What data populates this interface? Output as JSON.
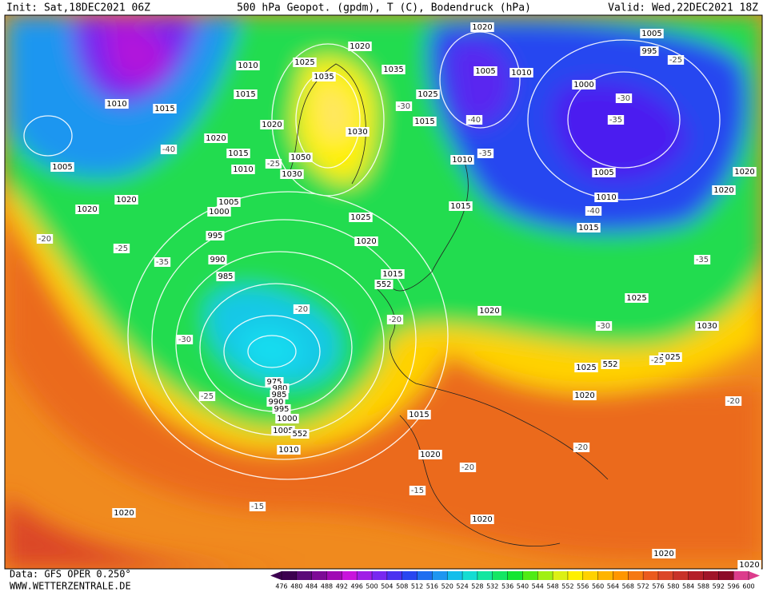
{
  "header": {
    "init": "Init: Sat,18DEC2021 06Z",
    "title": "500 hPa Geopot. (gpdm), T (C), Bodendruck (hPa)",
    "valid": "Valid: Wed,22DEC2021 18Z"
  },
  "footer": {
    "data": "Data: GFS OPER 0.250°",
    "site": "WWW.WETTERZENTRALE.DE"
  },
  "map": {
    "pressure_labels": [
      "1020",
      "1005",
      "995",
      "1020",
      "1010",
      "1025",
      "1035",
      "1035",
      "1005",
      "1010",
      "1000",
      "1010",
      "1015",
      "1015",
      "1025",
      "1020",
      "1015",
      "1030",
      "1020",
      "1015",
      "1050",
      "1010",
      "1010",
      "1030",
      "1005",
      "1005",
      "1020",
      "1020",
      "1020",
      "1010",
      "1005",
      "1000",
      "1020",
      "1015",
      "1025",
      "1015",
      "995",
      "1020",
      "990",
      "985",
      "1015",
      "552",
      "1025",
      "1020",
      "1030",
      "1025",
      "1025",
      "552",
      "975",
      "980",
      "985",
      "990",
      "995",
      "1000",
      "1005",
      "552",
      "1010",
      "1020",
      "1015",
      "1020",
      "1020",
      "1020",
      "1020",
      "1020"
    ],
    "temperature_labels": [
      "-25",
      "-30",
      "-30",
      "-35",
      "-40",
      "-40",
      "-35",
      "-25",
      "-20",
      "-40",
      "-35",
      "-25",
      "-20",
      "-35",
      "-20",
      "-20",
      "-30",
      "-30",
      "-25",
      "-25",
      "-20",
      "-20",
      "-15",
      "-15"
    ]
  },
  "scale": {
    "ticks": [
      476,
      480,
      484,
      488,
      492,
      496,
      500,
      504,
      508,
      512,
      516,
      520,
      524,
      528,
      532,
      536,
      540,
      544,
      548,
      552,
      556,
      560,
      564,
      568,
      572,
      576,
      580,
      584,
      588,
      592,
      596,
      600
    ],
    "colors": [
      "#3c0050",
      "#5a0a78",
      "#7d0a96",
      "#a00ab4",
      "#c814dc",
      "#a01ee6",
      "#7828f0",
      "#4b32f0",
      "#2846f0",
      "#1e6ef0",
      "#1e96f0",
      "#14beeb",
      "#14dcd2",
      "#14e6a0",
      "#14e664",
      "#14e632",
      "#50eb14",
      "#a0f014",
      "#dcf014",
      "#fff000",
      "#ffd200",
      "#ffb400",
      "#ff9600",
      "#f57814",
      "#eb5a1e",
      "#dc4628",
      "#c83228",
      "#b41e28",
      "#a01428",
      "#8c0a28",
      "#dc3c8c"
    ]
  }
}
